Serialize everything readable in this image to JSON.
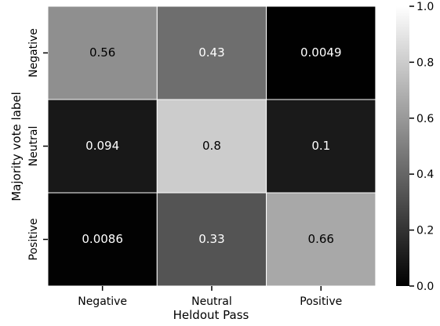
{
  "chart_data": {
    "type": "heatmap",
    "title": "",
    "xlabel": "Heldout Pass",
    "ylabel": "Majority vote label",
    "x_categories": [
      "Negative",
      "Neutral",
      "Positive"
    ],
    "y_categories": [
      "Negative",
      "Neutral",
      "Positive"
    ],
    "values": [
      [
        0.56,
        0.43,
        0.0049
      ],
      [
        0.094,
        0.8,
        0.1
      ],
      [
        0.0086,
        0.33,
        0.66
      ]
    ],
    "value_labels": [
      [
        "0.56",
        "0.43",
        "0.0049"
      ],
      [
        "0.094",
        "0.8",
        "0.1"
      ],
      [
        "0.0086",
        "0.33",
        "0.66"
      ]
    ],
    "colorbar": {
      "range": [
        0.0,
        1.0
      ],
      "ticks": [
        "0.0",
        "0.2",
        "0.4",
        "0.6",
        "0.8",
        "1.0"
      ],
      "colormap": "gray"
    }
  }
}
